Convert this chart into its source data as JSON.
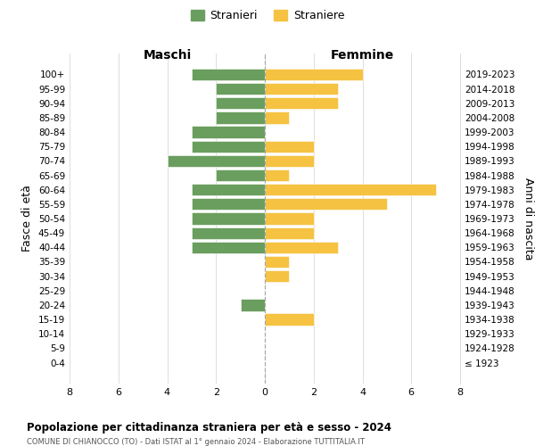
{
  "age_groups": [
    "0-4",
    "5-9",
    "10-14",
    "15-19",
    "20-24",
    "25-29",
    "30-34",
    "35-39",
    "40-44",
    "45-49",
    "50-54",
    "55-59",
    "60-64",
    "65-69",
    "70-74",
    "75-79",
    "80-84",
    "85-89",
    "90-94",
    "95-99",
    "100+"
  ],
  "birth_years": [
    "2019-2023",
    "2014-2018",
    "2009-2013",
    "2004-2008",
    "1999-2003",
    "1994-1998",
    "1989-1993",
    "1984-1988",
    "1979-1983",
    "1974-1978",
    "1969-1973",
    "1964-1968",
    "1959-1963",
    "1954-1958",
    "1949-1953",
    "1944-1948",
    "1939-1943",
    "1934-1938",
    "1929-1933",
    "1924-1928",
    "≤ 1923"
  ],
  "maschi": [
    3,
    2,
    2,
    2,
    3,
    3,
    4,
    2,
    3,
    3,
    3,
    3,
    3,
    0,
    0,
    0,
    1,
    0,
    0,
    0,
    0
  ],
  "femmine": [
    4,
    3,
    3,
    1,
    0,
    2,
    2,
    1,
    7,
    5,
    2,
    2,
    3,
    1,
    1,
    0,
    0,
    2,
    0,
    0,
    0
  ],
  "maschi_color": "#6a9e5e",
  "femmine_color": "#f5c242",
  "title": "Popolazione per cittadinanza straniera per età e sesso - 2024",
  "subtitle": "COMUNE DI CHIANOCCO (TO) - Dati ISTAT al 1° gennaio 2024 - Elaborazione TUTTITALIA.IT",
  "xlabel_left": "Maschi",
  "xlabel_right": "Femmine",
  "ylabel_left": "Fasce di età",
  "ylabel_right": "Anni di nascita",
  "legend_maschi": "Stranieri",
  "legend_femmine": "Straniere",
  "xlim": 8,
  "background_color": "#ffffff",
  "grid_color": "#dddddd"
}
